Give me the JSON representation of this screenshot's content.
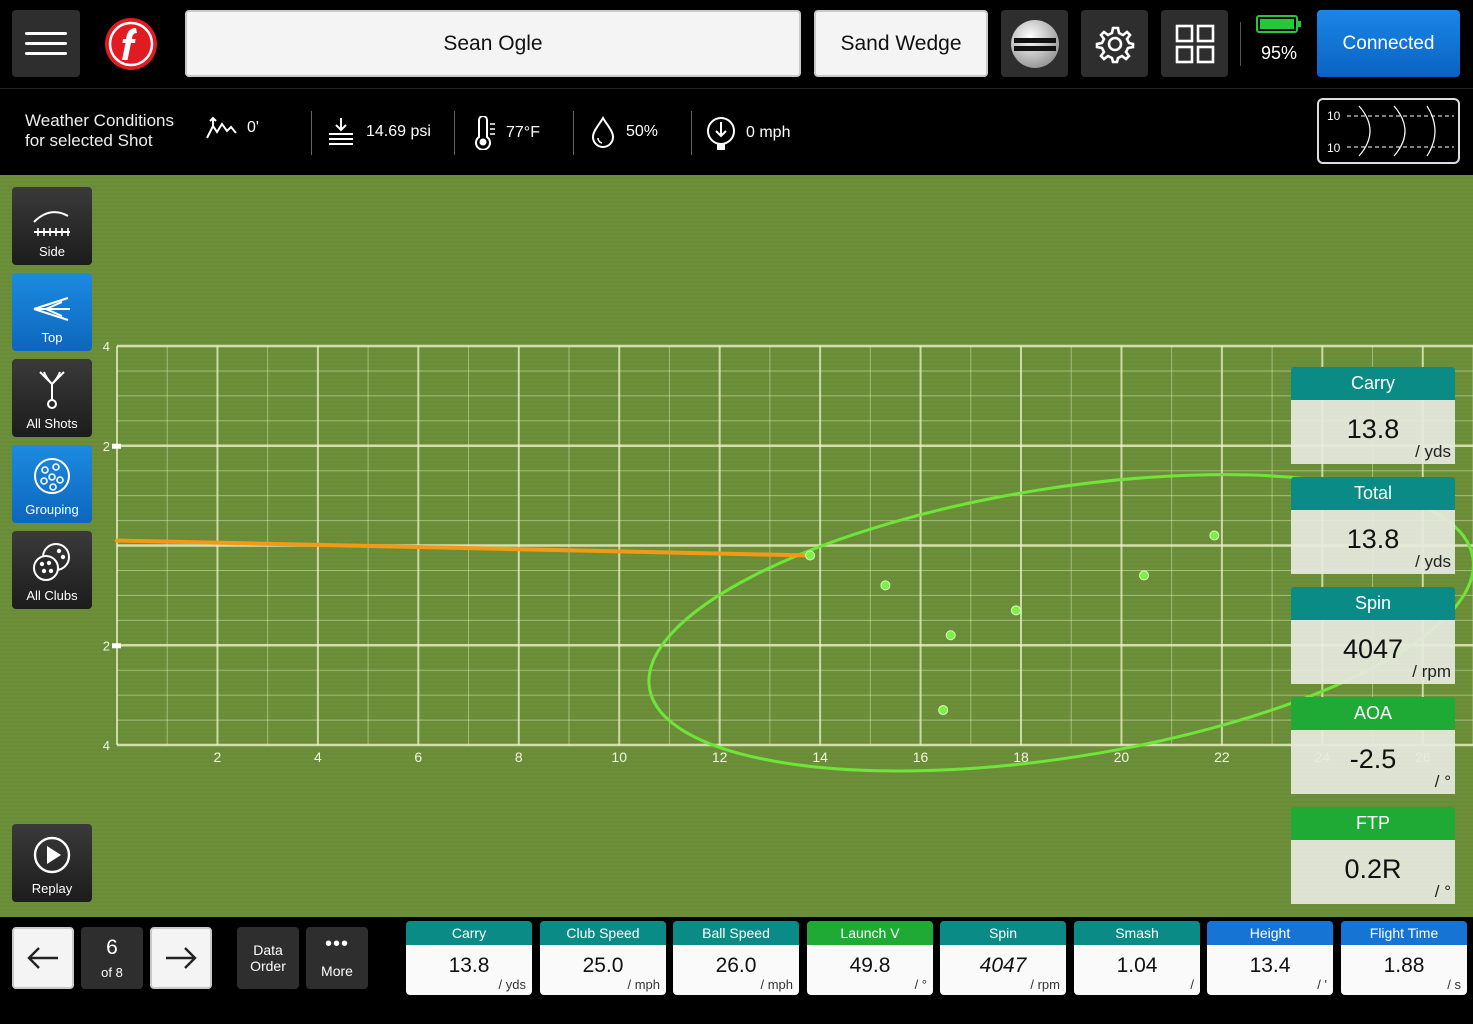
{
  "topbar": {
    "player_name": "Sean Ogle",
    "club": "Sand Wedge",
    "battery_pct": "95%",
    "connect_label": "Connected"
  },
  "weather": {
    "title_line1": "Weather Conditions",
    "title_line2": "for selected Shot",
    "altitude": "0'",
    "pressure": "14.69 psi",
    "temperature": "77°F",
    "humidity": "50%",
    "wind": "0 mph"
  },
  "minimap": {
    "top_label": "10",
    "bottom_label": "10"
  },
  "side_buttons": {
    "side": "Side",
    "top": "Top",
    "all_shots": "All Shots",
    "grouping": "Grouping",
    "all_clubs": "All Clubs",
    "replay": "Replay"
  },
  "chart_data": {
    "type": "scatter",
    "view": "top",
    "x_ticks": [
      "2",
      "4",
      "6",
      "8",
      "10",
      "12",
      "14",
      "16",
      "18",
      "20",
      "22",
      "24",
      "26"
    ],
    "y_ticks": [
      "4",
      "2",
      "",
      "2",
      "4"
    ],
    "xlim": [
      0,
      27
    ],
    "ylim": [
      -4,
      4
    ],
    "trajectory": {
      "color": "#f29a17",
      "points": [
        [
          0,
          0.1
        ],
        [
          13.8,
          -0.2
        ]
      ]
    },
    "shots": [
      [
        13.8,
        -0.2
      ],
      [
        15.3,
        -0.8
      ],
      [
        16.6,
        -1.8
      ],
      [
        16.45,
        -3.3
      ],
      [
        17.9,
        -1.3
      ],
      [
        20.45,
        -0.6
      ],
      [
        21.85,
        0.2
      ]
    ],
    "group_ellipse": {
      "cx": 18.8,
      "cy": -1.55,
      "rx": 8.3,
      "ry": 2.7,
      "rotation_deg": -9,
      "color": "#6fe53a"
    }
  },
  "metric_cards": [
    {
      "label": "Carry",
      "value": "13.8",
      "unit": "/ yds",
      "color": "teal"
    },
    {
      "label": "Total",
      "value": "13.8",
      "unit": "/ yds",
      "color": "teal"
    },
    {
      "label": "Spin",
      "value": "4047",
      "unit": "/ rpm",
      "color": "teal"
    },
    {
      "label": "AOA",
      "value": "-2.5",
      "unit": "/ °",
      "color": "green"
    },
    {
      "label": "FTP",
      "value": "0.2R",
      "unit": "/ °",
      "color": "green"
    }
  ],
  "bottom": {
    "shot_number": "6",
    "shot_of": "of 8",
    "data_order_line1": "Data",
    "data_order_line2": "Order",
    "more_label": "More"
  },
  "bottom_stats": [
    {
      "label": "Carry",
      "value": "13.8",
      "unit": "/ yds",
      "color": "teal"
    },
    {
      "label": "Club Speed",
      "value": "25.0",
      "unit": "/ mph",
      "color": "teal"
    },
    {
      "label": "Ball Speed",
      "value": "26.0",
      "unit": "/ mph",
      "color": "teal"
    },
    {
      "label": "Launch V",
      "value": "49.8",
      "unit": "/ °",
      "color": "green"
    },
    {
      "label": "Spin",
      "value": "4047",
      "unit": "/ rpm",
      "color": "teal"
    },
    {
      "label": "Smash",
      "value": "1.04",
      "unit": "/",
      "color": "teal"
    },
    {
      "label": "Height",
      "value": "13.4",
      "unit": "/ '",
      "color": "blue-h"
    },
    {
      "label": "Flight Time",
      "value": "1.88",
      "unit": "/ s",
      "color": "blue-h"
    }
  ]
}
